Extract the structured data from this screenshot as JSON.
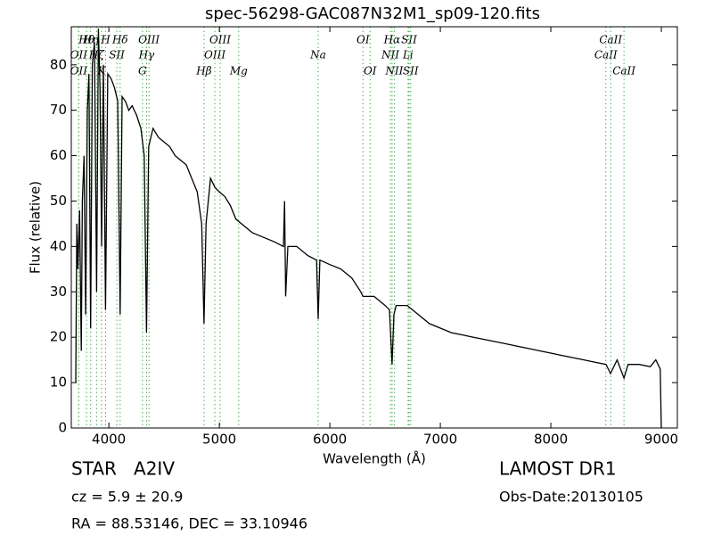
{
  "chart_data": {
    "type": "line",
    "title": "spec-56298-GAC087N32M1_sp09-120.fits",
    "xlabel": "Wavelength (Å)",
    "ylabel": "Flux (relative)",
    "xlim": [
      3660,
      9145
    ],
    "ylim": [
      0,
      88.4
    ],
    "xticks": [
      4000,
      5000,
      6000,
      7000,
      8000,
      9000
    ],
    "yticks": [
      0,
      10,
      20,
      30,
      40,
      50,
      60,
      70,
      80
    ],
    "color": "#000000",
    "line_color": "#4caf50",
    "x": [
      3700,
      3710,
      3720,
      3735,
      3750,
      3760,
      3775,
      3790,
      3805,
      3820,
      3835,
      3850,
      3870,
      3889,
      3905,
      3920,
      3934,
      3950,
      3970,
      3990,
      4020,
      4050,
      4080,
      4102,
      4120,
      4150,
      4180,
      4210,
      4250,
      4290,
      4320,
      4341,
      4360,
      4400,
      4450,
      4500,
      4550,
      4600,
      4650,
      4700,
      4750,
      4800,
      4840,
      4861,
      4880,
      4920,
      4960,
      5000,
      5050,
      5100,
      5150,
      5200,
      5250,
      5300,
      5400,
      5500,
      5580,
      5590,
      5600,
      5620,
      5700,
      5800,
      5880,
      5894,
      5910,
      6000,
      6100,
      6200,
      6280,
      6300,
      6400,
      6500,
      6540,
      6563,
      6580,
      6600,
      6700,
      6800,
      6900,
      7000,
      7100,
      7200,
      7300,
      7400,
      7500,
      7600,
      7700,
      7800,
      7900,
      8000,
      8100,
      8200,
      8300,
      8400,
      8500,
      8540,
      8600,
      8662,
      8700,
      8800,
      8900,
      8950,
      8990,
      9000
    ],
    "values": [
      10,
      45,
      35,
      48,
      17,
      50,
      60,
      25,
      70,
      78,
      22,
      80,
      85,
      30,
      88,
      75,
      40,
      80,
      26,
      78,
      77,
      75,
      72,
      25,
      73,
      72,
      70,
      71,
      69,
      66,
      60,
      21,
      62,
      66,
      64,
      63,
      62,
      60,
      59,
      58,
      55,
      52,
      45,
      23,
      45,
      55,
      53,
      52,
      51,
      49,
      46,
      45,
      44,
      43,
      42,
      41,
      40,
      50,
      29,
      40,
      40,
      38,
      37,
      24,
      37,
      36,
      35,
      33,
      30,
      29,
      29,
      27,
      26,
      14,
      25,
      27,
      27,
      25,
      23,
      22,
      21,
      20.5,
      20,
      19.5,
      19,
      18.5,
      18,
      17.5,
      17,
      16.5,
      16,
      15.5,
      15,
      14.5,
      14,
      12,
      15,
      11,
      14,
      14,
      13.5,
      15,
      13,
      0
    ],
    "lines": [
      {
        "label": "OII",
        "x": 3727
      },
      {
        "label": "OII",
        "x": 3727
      },
      {
        "label": "Hθ",
        "x": 3798
      },
      {
        "label": "Hη",
        "x": 3835
      },
      {
        "label": "Hζ",
        "x": 3889
      },
      {
        "label": "K",
        "x": 3934
      },
      {
        "label": "H",
        "x": 3970
      },
      {
        "label": "SII",
        "x": 4072
      },
      {
        "label": "Hδ",
        "x": 4102
      },
      {
        "label": "G",
        "x": 4304
      },
      {
        "label": "Hγ",
        "x": 4341
      },
      {
        "label": "OIII",
        "x": 4363
      },
      {
        "label": "Hβ",
        "x": 4861
      },
      {
        "label": "OIII",
        "x": 4959
      },
      {
        "label": "OIII",
        "x": 5007
      },
      {
        "label": "Mg",
        "x": 5175
      },
      {
        "label": "Na",
        "x": 5894
      },
      {
        "label": "OI",
        "x": 6300
      },
      {
        "label": "OI",
        "x": 6364
      },
      {
        "label": "NII",
        "x": 6548
      },
      {
        "label": "Hα",
        "x": 6563
      },
      {
        "label": "NII",
        "x": 6583
      },
      {
        "label": "Li",
        "x": 6708
      },
      {
        "label": "SII",
        "x": 6717
      },
      {
        "label": "SII",
        "x": 6731
      },
      {
        "label": "CaII",
        "x": 8498
      },
      {
        "label": "CaII",
        "x": 8542
      },
      {
        "label": "CaII",
        "x": 8662
      }
    ],
    "footer": [
      "STAR   A2IV",
      "cz = 5.9 ± 20.9",
      "RA = 88.53146, DEC = 33.10946",
      "LAMOST DR1",
      "Obs-Date:20130105"
    ]
  }
}
